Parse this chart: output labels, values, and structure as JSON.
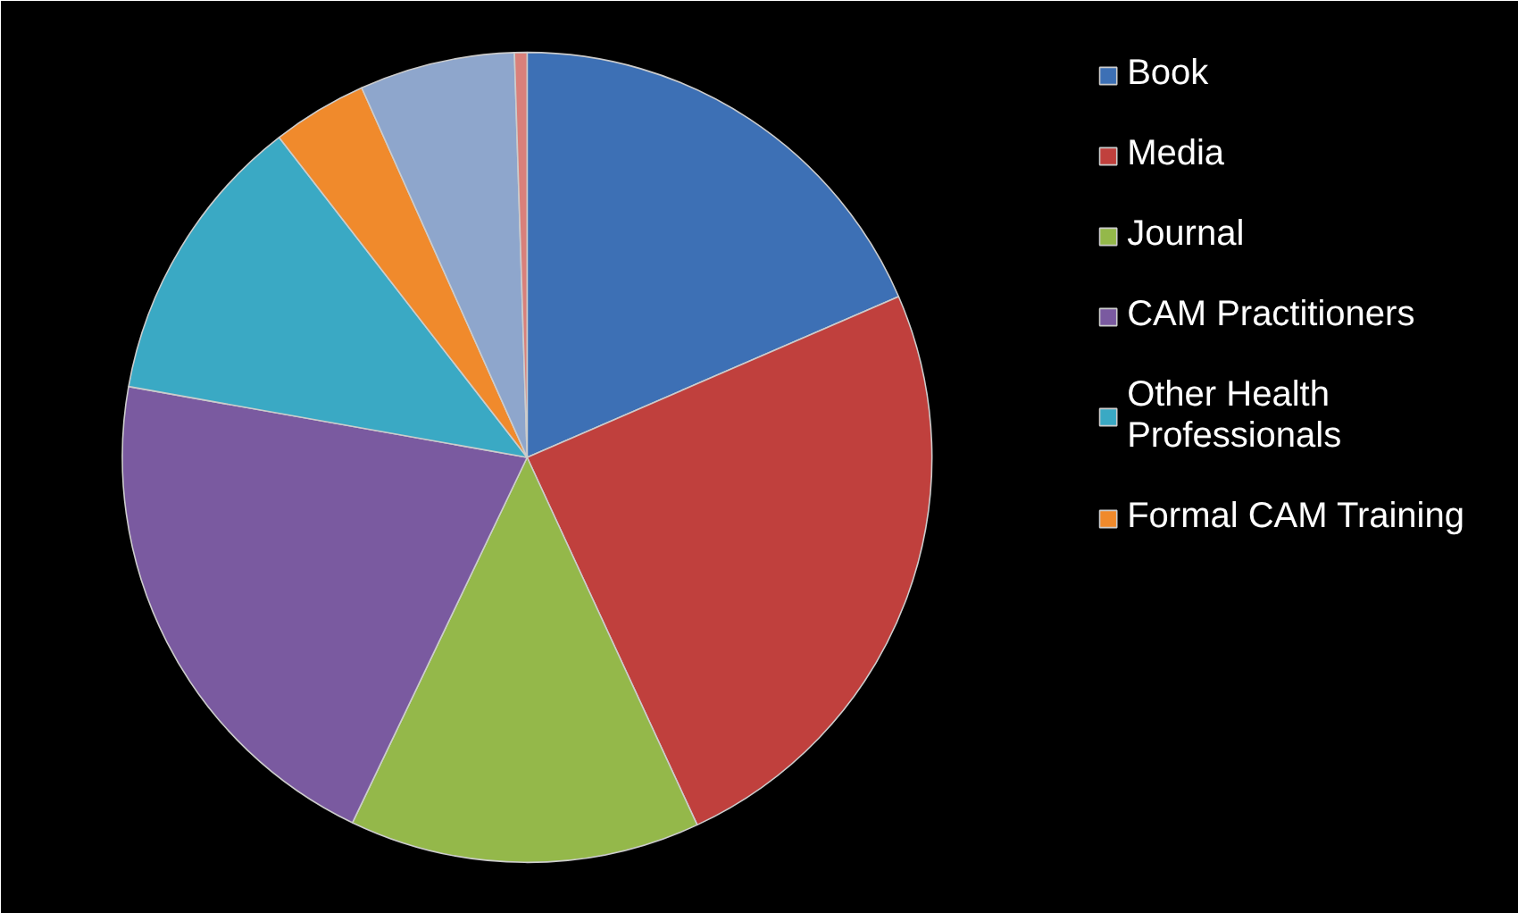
{
  "chart_data": {
    "type": "pie",
    "categories": [
      "Book",
      "Media",
      "Journal",
      "CAM Practitioners",
      "Other Health\nProfessionals",
      "Formal CAM Training",
      null,
      null
    ],
    "values": [
      18.5,
      24.6,
      14,
      20.7,
      11.7,
      3.8,
      6.2,
      0.5
    ],
    "colors": [
      "#3d70b5",
      "#c0403d",
      "#94b84a",
      "#7a5aa0",
      "#3aa9c4",
      "#f08a2c",
      "#8ea6cc",
      "#d9807a"
    ],
    "legend": "right"
  }
}
